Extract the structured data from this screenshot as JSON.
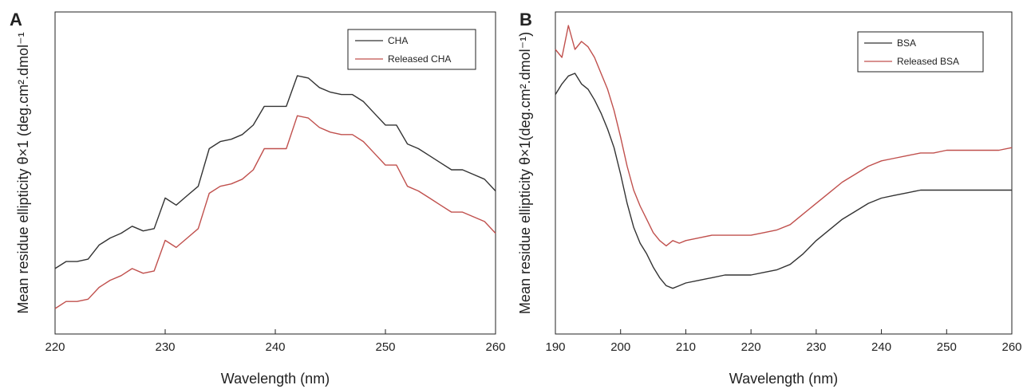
{
  "chart_data": [
    {
      "type": "line",
      "panel": "A",
      "xlabel": "Wavelength (nm)",
      "ylabel": "Mean residue ellipticity θ×1 (deg.cm².dmol⁻¹",
      "xlim": [
        220,
        260
      ],
      "ylim": [
        0,
        100
      ],
      "xticks": [
        "220",
        "230",
        "240",
        "250",
        "260"
      ],
      "grid": false,
      "legend_position": "top-right",
      "x": [
        220,
        221,
        222,
        223,
        224,
        225,
        226,
        227,
        228,
        229,
        230,
        231,
        232,
        233,
        234,
        235,
        236,
        237,
        238,
        239,
        240,
        241,
        242,
        243,
        244,
        245,
        246,
        247,
        248,
        249,
        250,
        251,
        252,
        253,
        254,
        255,
        256,
        257,
        258,
        259,
        260
      ],
      "series": [
        {
          "name": "CHA",
          "color": "#333333",
          "values": [
            18,
            21,
            21,
            22,
            28,
            31,
            33,
            36,
            34,
            35,
            48,
            45,
            49,
            53,
            69,
            72,
            73,
            75,
            79,
            87,
            87,
            87,
            100,
            99,
            95,
            93,
            92,
            92,
            89,
            84,
            79,
            79,
            71,
            69,
            66,
            63,
            60,
            60,
            58,
            56,
            51
          ]
        },
        {
          "name": "Released CHA",
          "color": "#c0504d",
          "values": [
            1,
            4,
            4,
            5,
            10,
            13,
            15,
            18,
            16,
            17,
            30,
            27,
            31,
            35,
            50,
            53,
            54,
            56,
            60,
            69,
            69,
            69,
            83,
            82,
            78,
            76,
            75,
            75,
            72,
            67,
            62,
            62,
            53,
            51,
            48,
            45,
            42,
            42,
            40,
            38,
            33
          ]
        }
      ]
    },
    {
      "type": "line",
      "panel": "B",
      "xlabel": "Wavelength (nm)",
      "ylabel": "Mean residue ellipticity θ×1(deg.cm².dmol⁻¹)",
      "xlim": [
        190,
        260
      ],
      "ylim": [
        0,
        100
      ],
      "xticks": [
        "190",
        "200",
        "210",
        "220",
        "230",
        "240",
        "250",
        "260"
      ],
      "grid": false,
      "legend_position": "top-right",
      "x": [
        190,
        191,
        192,
        193,
        194,
        195,
        196,
        197,
        198,
        199,
        200,
        201,
        202,
        203,
        204,
        205,
        206,
        207,
        208,
        209,
        210,
        212,
        214,
        216,
        218,
        220,
        222,
        224,
        226,
        228,
        230,
        232,
        234,
        236,
        238,
        240,
        242,
        244,
        246,
        248,
        250,
        252,
        254,
        256,
        258,
        260
      ],
      "series": [
        {
          "name": "BSA",
          "color": "#333333",
          "values": [
            80,
            84,
            87,
            88,
            84,
            82,
            78,
            73,
            67,
            60,
            50,
            39,
            30,
            24,
            20,
            15,
            11,
            8,
            7,
            8,
            9,
            10,
            11,
            12,
            12,
            12,
            13,
            14,
            16,
            20,
            25,
            29,
            33,
            36,
            39,
            41,
            42,
            43,
            44,
            44,
            44,
            44,
            44,
            44,
            44,
            44
          ]
        },
        {
          "name": "Released BSA",
          "color": "#c0504d",
          "values": [
            97,
            94,
            106,
            97,
            100,
            98,
            94,
            88,
            82,
            74,
            64,
            53,
            44,
            38,
            33,
            28,
            25,
            23,
            25,
            24,
            25,
            26,
            27,
            27,
            27,
            27,
            28,
            29,
            31,
            35,
            39,
            43,
            47,
            50,
            53,
            55,
            56,
            57,
            58,
            58,
            59,
            59,
            59,
            59,
            59,
            60
          ]
        }
      ]
    }
  ]
}
